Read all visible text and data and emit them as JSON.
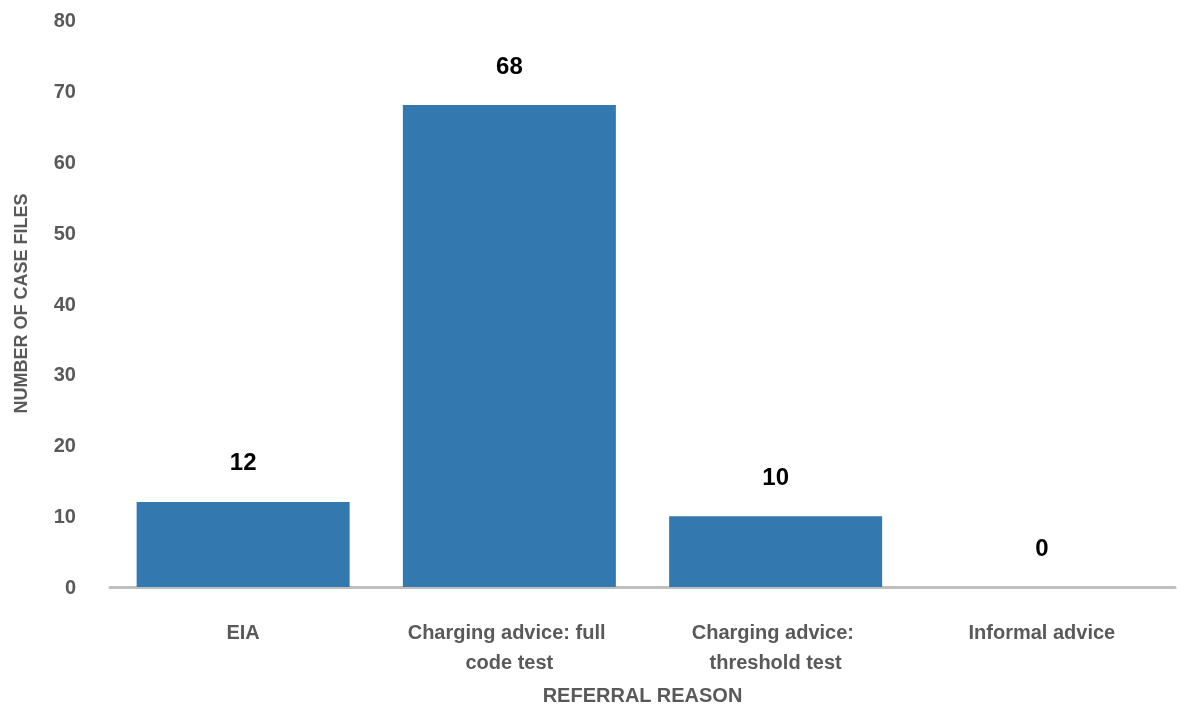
{
  "chart_data": {
    "type": "bar",
    "xlabel": "REFERRAL REASON",
    "ylabel": "NUMBER OF CASE FILES",
    "categories": [
      "EIA",
      "Charging advice: full code test",
      "Charging advice: threshold test",
      "Informal advice"
    ],
    "values": [
      12,
      68,
      10,
      0
    ],
    "color": "#3478b0",
    "ylim": [
      0,
      80
    ],
    "yticks": [
      0,
      10,
      20,
      30,
      40,
      50,
      60,
      70,
      80
    ],
    "grid": false,
    "data_labels": true
  }
}
